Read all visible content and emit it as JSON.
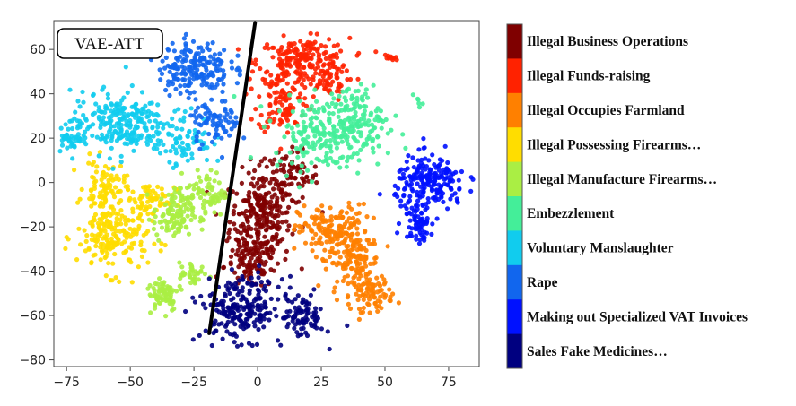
{
  "chart_data": {
    "type": "scatter",
    "title": "VAE-ATT",
    "xlabel": "",
    "ylabel": "",
    "xlim": [
      -80,
      87
    ],
    "ylim": [
      -83,
      73
    ],
    "xticks": [
      -75,
      -50,
      -25,
      0,
      25,
      50,
      75
    ],
    "yticks": [
      60,
      40,
      20,
      0,
      -20,
      -40,
      -60,
      -80
    ],
    "xtick_labels": [
      "−75",
      "−50",
      "−25",
      "0",
      "25",
      "50",
      "75"
    ],
    "ytick_labels": [
      "60",
      "40",
      "20",
      "0",
      "−20",
      "−40",
      "−60",
      "−80"
    ],
    "grid": false,
    "legend_placement": "right colorbar",
    "divider_line": {
      "x": [
        -19,
        -1
      ],
      "y": [
        -68,
        72
      ],
      "color": "#000000"
    },
    "series": [
      {
        "name": "Illegal Business Operations",
        "color": "#7f0000",
        "clusters": [
          {
            "cx": 1,
            "cy": -17,
            "sx": 6,
            "sy": 11,
            "n": 260
          },
          {
            "cx": 12,
            "cy": 2,
            "sx": 6,
            "sy": 6,
            "n": 90
          },
          {
            "cx": -3,
            "cy": -38,
            "sx": 5,
            "sy": 5,
            "n": 70
          }
        ]
      },
      {
        "name": "Illegal Funds-raising",
        "color": "#ff2200",
        "clusters": [
          {
            "cx": 18,
            "cy": 55,
            "sx": 9,
            "sy": 5,
            "n": 200
          },
          {
            "cx": 10,
            "cy": 38,
            "sx": 5,
            "sy": 8,
            "n": 110
          },
          {
            "cx": 27,
            "cy": 45,
            "sx": 4,
            "sy": 4,
            "n": 40
          },
          {
            "cx": 52,
            "cy": 56,
            "sx": 1.5,
            "sy": 1,
            "n": 10
          }
        ]
      },
      {
        "name": "Illegal Occupies Farmland",
        "color": "#ff8000",
        "clusters": [
          {
            "cx": 30,
            "cy": -22,
            "sx": 7,
            "sy": 6,
            "n": 170
          },
          {
            "cx": 38,
            "cy": -36,
            "sx": 5,
            "sy": 6,
            "n": 120
          },
          {
            "cx": 45,
            "cy": -50,
            "sx": 4,
            "sy": 4,
            "n": 80
          }
        ]
      },
      {
        "name": "Illegal Possessing Firearms…",
        "color": "#ffdd00",
        "clusters": [
          {
            "cx": -57,
            "cy": -25,
            "sx": 7,
            "sy": 8,
            "n": 190
          },
          {
            "cx": -60,
            "cy": -2,
            "sx": 4,
            "sy": 6,
            "n": 90
          },
          {
            "cx": -42,
            "cy": -8,
            "sx": 5,
            "sy": 4,
            "n": 70
          }
        ]
      },
      {
        "name": "Illegal Manufacture Firearms…",
        "color": "#aaee44",
        "clusters": [
          {
            "cx": -33,
            "cy": -15,
            "sx": 4,
            "sy": 6,
            "n": 110
          },
          {
            "cx": -20,
            "cy": -5,
            "sx": 4,
            "sy": 5,
            "n": 80
          },
          {
            "cx": -37,
            "cy": -50,
            "sx": 3,
            "sy": 4,
            "n": 70
          },
          {
            "cx": -25,
            "cy": -42,
            "sx": 3,
            "sy": 3,
            "n": 40
          }
        ]
      },
      {
        "name": "Embezzlement",
        "color": "#44ee99",
        "clusters": [
          {
            "cx": 28,
            "cy": 22,
            "sx": 11,
            "sy": 8,
            "n": 230
          },
          {
            "cx": 38,
            "cy": 32,
            "sx": 5,
            "sy": 6,
            "n": 80
          },
          {
            "cx": 63,
            "cy": 36,
            "sx": 1,
            "sy": 1,
            "n": 6
          }
        ]
      },
      {
        "name": "Voluntary Manslaughter",
        "color": "#11ccee",
        "clusters": [
          {
            "cx": -55,
            "cy": 27,
            "sx": 9,
            "sy": 7,
            "n": 230
          },
          {
            "cx": -30,
            "cy": 20,
            "sx": 6,
            "sy": 6,
            "n": 80
          },
          {
            "cx": -73,
            "cy": 20,
            "sx": 3,
            "sy": 3,
            "n": 40
          }
        ]
      },
      {
        "name": "Rape",
        "color": "#1166ee",
        "clusters": [
          {
            "cx": -25,
            "cy": 52,
            "sx": 7,
            "sy": 6,
            "n": 190
          },
          {
            "cx": -17,
            "cy": 27,
            "sx": 5,
            "sy": 5,
            "n": 80
          }
        ]
      },
      {
        "name": "Making out Specialized VAT Invoices",
        "color": "#0011ff",
        "clusters": [
          {
            "cx": 68,
            "cy": 0,
            "sx": 7,
            "sy": 6,
            "n": 200
          },
          {
            "cx": 63,
            "cy": -17,
            "sx": 3,
            "sy": 5,
            "n": 70
          }
        ]
      },
      {
        "name": "Sales Fake Medicines…",
        "color": "#000080",
        "clusters": [
          {
            "cx": -6,
            "cy": -57,
            "sx": 8,
            "sy": 7,
            "n": 230
          },
          {
            "cx": 18,
            "cy": -60,
            "sx": 4,
            "sy": 5,
            "n": 80
          }
        ]
      }
    ]
  }
}
